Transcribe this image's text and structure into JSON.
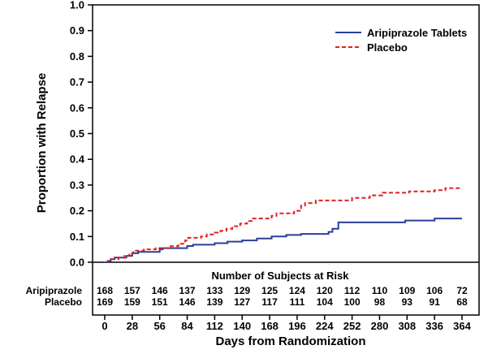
{
  "chart_data": {
    "type": "line",
    "subtype": "kaplan-meier step curve",
    "xlabel": "Days from Randomization",
    "ylabel": "Proportion with Relapse",
    "xlim": [
      0,
      364
    ],
    "ylim": [
      0,
      1.0
    ],
    "x_ticks": [
      0,
      28,
      56,
      84,
      112,
      140,
      168,
      196,
      224,
      252,
      280,
      308,
      336,
      364
    ],
    "y_ticks": [
      "0.0",
      "0.1",
      "0.2",
      "0.3",
      "0.4",
      "0.5",
      "0.6",
      "0.7",
      "0.8",
      "0.9",
      "1.0"
    ],
    "grid": false,
    "legend_position": "top-right",
    "series": [
      {
        "name": "Aripiprazole Tablets",
        "color": "#2b3f98",
        "line_style": "solid",
        "points": [
          [
            3,
            0
          ],
          [
            3,
            0.005
          ],
          [
            6,
            0.005
          ],
          [
            6,
            0.012
          ],
          [
            10,
            0.012
          ],
          [
            10,
            0.018
          ],
          [
            22,
            0.018
          ],
          [
            22,
            0.025
          ],
          [
            28,
            0.025
          ],
          [
            28,
            0.035
          ],
          [
            34,
            0.035
          ],
          [
            34,
            0.04
          ],
          [
            56,
            0.04
          ],
          [
            56,
            0.05
          ],
          [
            59,
            0.05
          ],
          [
            59,
            0.055
          ],
          [
            84,
            0.055
          ],
          [
            84,
            0.063
          ],
          [
            90,
            0.063
          ],
          [
            90,
            0.068
          ],
          [
            112,
            0.068
          ],
          [
            112,
            0.074
          ],
          [
            125,
            0.074
          ],
          [
            125,
            0.08
          ],
          [
            140,
            0.08
          ],
          [
            140,
            0.085
          ],
          [
            155,
            0.085
          ],
          [
            155,
            0.092
          ],
          [
            170,
            0.092
          ],
          [
            170,
            0.1
          ],
          [
            185,
            0.1
          ],
          [
            185,
            0.106
          ],
          [
            200,
            0.106
          ],
          [
            200,
            0.11
          ],
          [
            228,
            0.11
          ],
          [
            228,
            0.118
          ],
          [
            232,
            0.118
          ],
          [
            232,
            0.13
          ],
          [
            238,
            0.13
          ],
          [
            238,
            0.155
          ],
          [
            306,
            0.155
          ],
          [
            306,
            0.162
          ],
          [
            336,
            0.162
          ],
          [
            336,
            0.17
          ],
          [
            364,
            0.17
          ]
        ]
      },
      {
        "name": "Placebo",
        "color": "#e02020",
        "line_style": "dashed",
        "points": [
          [
            3,
            0
          ],
          [
            3,
            0.005
          ],
          [
            6,
            0.005
          ],
          [
            6,
            0.012
          ],
          [
            14,
            0.012
          ],
          [
            14,
            0.018
          ],
          [
            20,
            0.018
          ],
          [
            20,
            0.025
          ],
          [
            25,
            0.025
          ],
          [
            25,
            0.035
          ],
          [
            29,
            0.035
          ],
          [
            29,
            0.045
          ],
          [
            40,
            0.045
          ],
          [
            40,
            0.05
          ],
          [
            52,
            0.05
          ],
          [
            52,
            0.055
          ],
          [
            65,
            0.055
          ],
          [
            65,
            0.062
          ],
          [
            75,
            0.062
          ],
          [
            75,
            0.072
          ],
          [
            82,
            0.072
          ],
          [
            82,
            0.085
          ],
          [
            85,
            0.085
          ],
          [
            85,
            0.095
          ],
          [
            98,
            0.095
          ],
          [
            98,
            0.1
          ],
          [
            104,
            0.1
          ],
          [
            104,
            0.108
          ],
          [
            112,
            0.108
          ],
          [
            112,
            0.115
          ],
          [
            118,
            0.115
          ],
          [
            118,
            0.122
          ],
          [
            124,
            0.122
          ],
          [
            124,
            0.13
          ],
          [
            130,
            0.13
          ],
          [
            130,
            0.14
          ],
          [
            138,
            0.14
          ],
          [
            138,
            0.15
          ],
          [
            145,
            0.15
          ],
          [
            145,
            0.16
          ],
          [
            150,
            0.16
          ],
          [
            150,
            0.17
          ],
          [
            170,
            0.17
          ],
          [
            170,
            0.18
          ],
          [
            175,
            0.18
          ],
          [
            175,
            0.19
          ],
          [
            193,
            0.19
          ],
          [
            193,
            0.2
          ],
          [
            200,
            0.2
          ],
          [
            200,
            0.22
          ],
          [
            204,
            0.22
          ],
          [
            204,
            0.23
          ],
          [
            215,
            0.23
          ],
          [
            215,
            0.24
          ],
          [
            252,
            0.24
          ],
          [
            252,
            0.25
          ],
          [
            270,
            0.25
          ],
          [
            270,
            0.26
          ],
          [
            283,
            0.26
          ],
          [
            283,
            0.27
          ],
          [
            310,
            0.27
          ],
          [
            310,
            0.275
          ],
          [
            336,
            0.275
          ],
          [
            336,
            0.28
          ],
          [
            347,
            0.28
          ],
          [
            347,
            0.288
          ],
          [
            364,
            0.288
          ]
        ]
      }
    ],
    "risk_table": {
      "title": "Number of Subjects at Risk",
      "rows": [
        {
          "name": "Aripiprazole",
          "values": [
            "168",
            "157",
            "146",
            "137",
            "133",
            "129",
            "125",
            "124",
            "120",
            "112",
            "110",
            "109",
            "106",
            "72"
          ]
        },
        {
          "name": "Placebo",
          "values": [
            "169",
            "159",
            "151",
            "146",
            "139",
            "127",
            "117",
            "111",
            "104",
            "100",
            "98",
            "93",
            "91",
            "68"
          ]
        }
      ]
    }
  }
}
